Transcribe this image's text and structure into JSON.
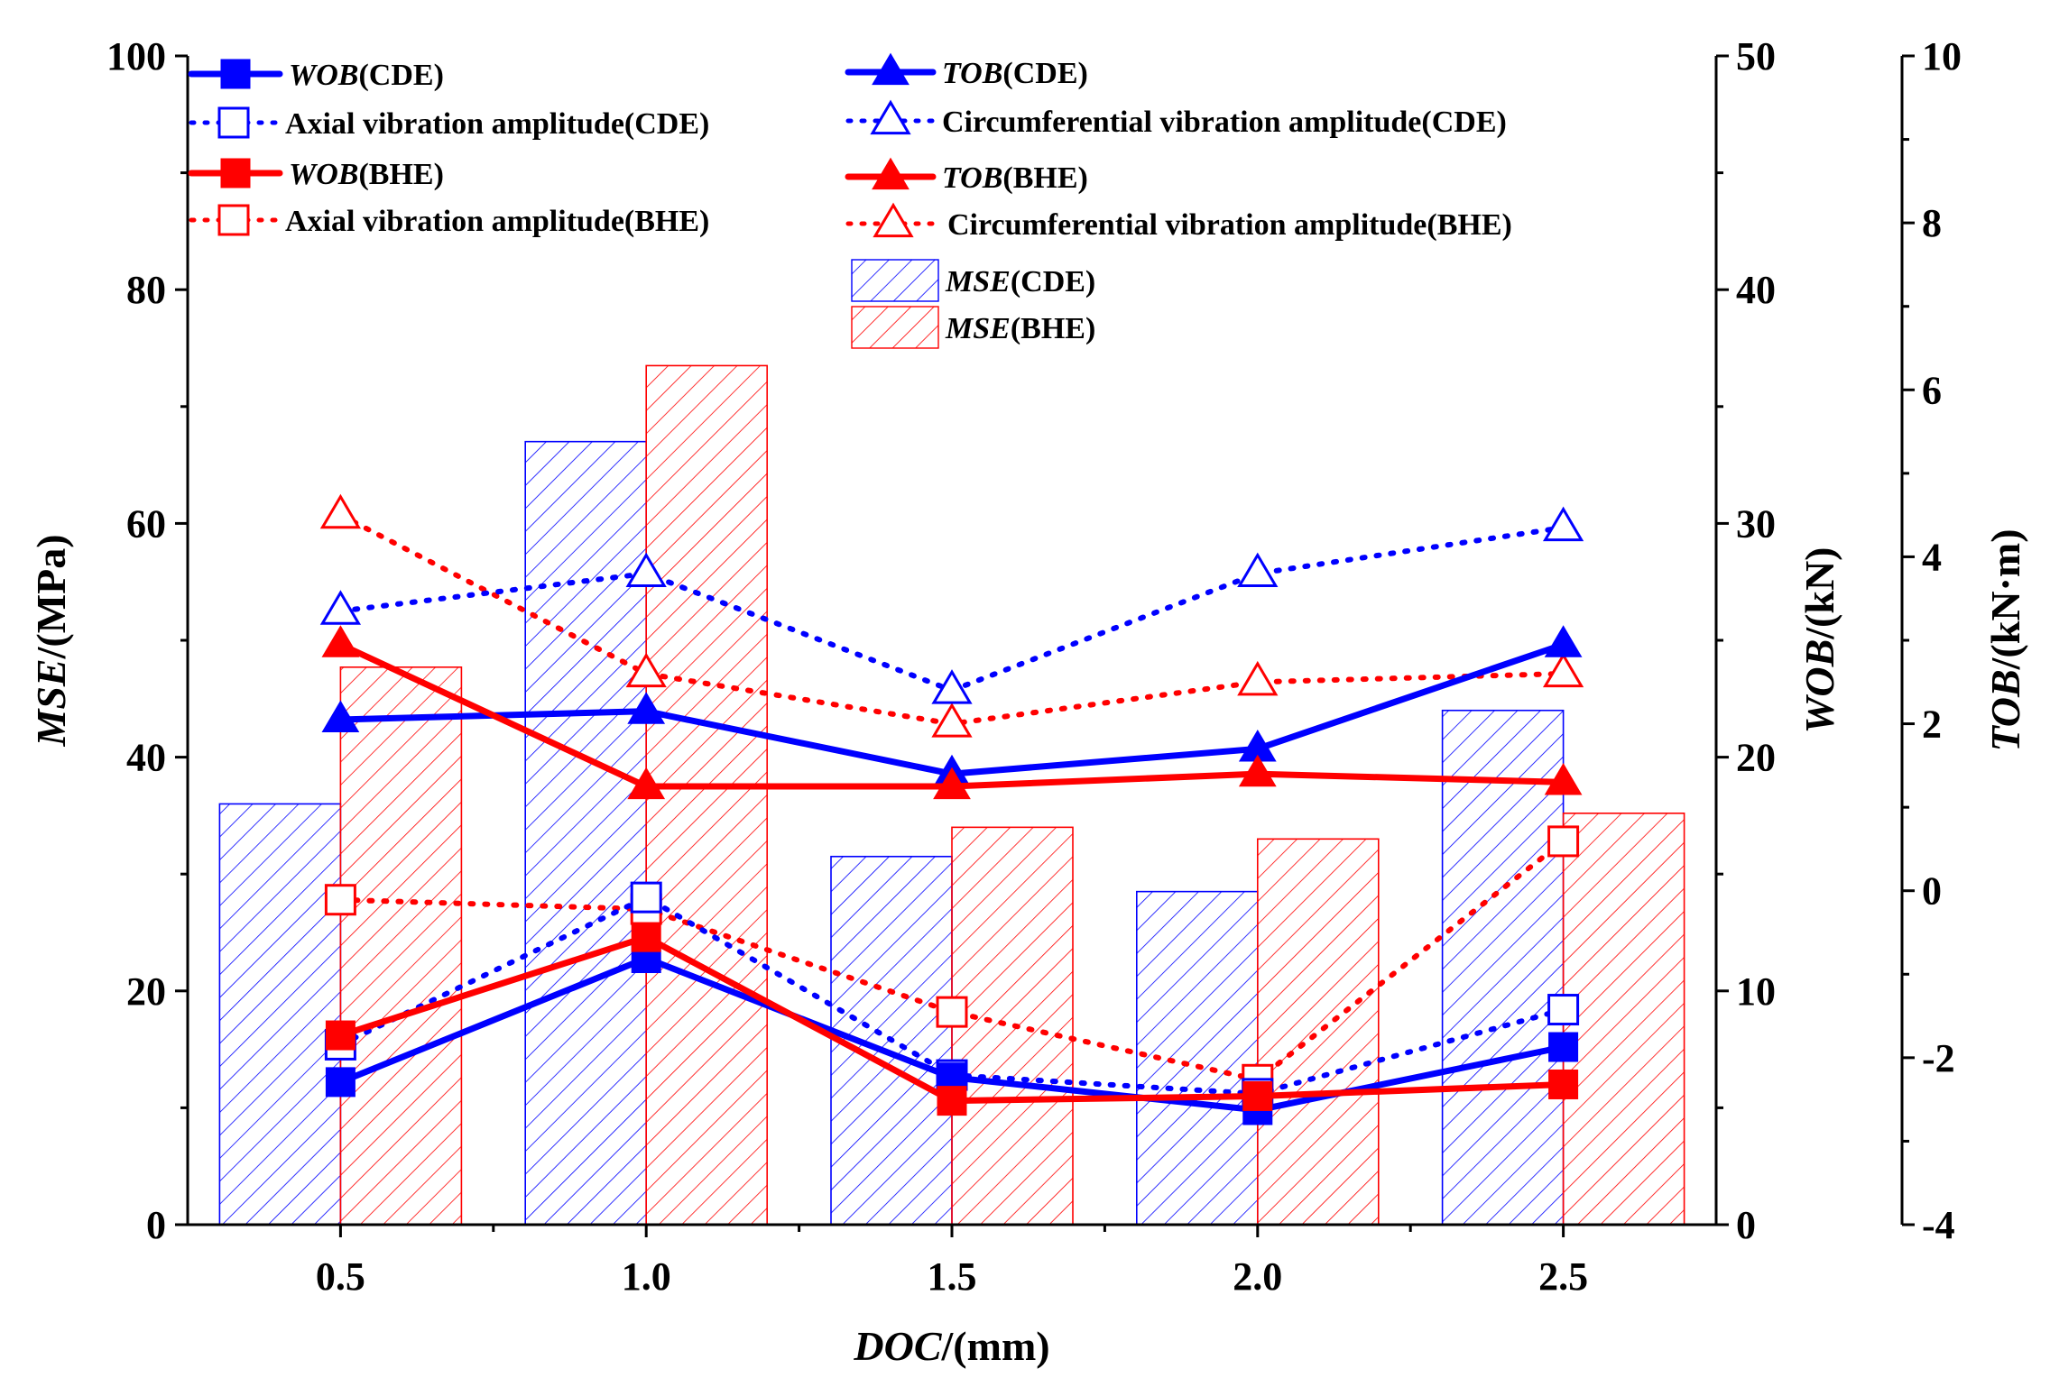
{
  "chart_data": {
    "type": "bar",
    "title": "",
    "x": [
      0.5,
      1.0,
      1.5,
      2.0,
      2.5
    ],
    "xtick_labels": [
      "0.5",
      "1.0",
      "1.5",
      "2.0",
      "2.5"
    ],
    "xlabel": {
      "italic": "DOC",
      "rest": "/(mm)"
    },
    "xlim": [
      0.25,
      2.75
    ],
    "y_axes": {
      "mse": {
        "label_italic": "MSE",
        "label_rest": "/(MPa)",
        "range": [
          0,
          100
        ],
        "ticks": [
          "0",
          "20",
          "40",
          "60",
          "80",
          "100"
        ]
      },
      "wob": {
        "label_italic": "WOB",
        "label_rest": "/(kN)",
        "range": [
          0,
          50
        ],
        "ticks": [
          "0",
          "10",
          "20",
          "30",
          "40",
          "50"
        ]
      },
      "tob": {
        "label_italic": "TOB",
        "label_rest": "/(kN·m)",
        "range": [
          -4,
          10
        ],
        "ticks": [
          "-4",
          "-2",
          "0",
          "2",
          "4",
          "6",
          "8",
          "10"
        ]
      }
    },
    "colors": {
      "cde": "#0000ff",
      "bhe": "#ff0000"
    },
    "bar_series": [
      {
        "key": "mse_cde",
        "name": "MSE(CDE)",
        "legend_italic": "MSE",
        "legend_rest": "(CDE)",
        "color": "#0000ff",
        "axis": "mse",
        "values": [
          36,
          67,
          31.5,
          28.5,
          44
        ]
      },
      {
        "key": "mse_bhe",
        "name": "MSE(BHE)",
        "legend_italic": "MSE",
        "legend_rest": "(BHE)",
        "color": "#ff0000",
        "axis": "mse",
        "values": [
          47.7,
          73.5,
          34,
          33,
          35.2
        ]
      }
    ],
    "line_series": [
      {
        "key": "wob_cde",
        "name": "WOB(CDE)",
        "legend_italic": "WOB",
        "legend_rest": "(CDE)",
        "color": "#0000ff",
        "axis": "wob",
        "style": "solid",
        "marker": "square-filled",
        "values": [
          6.1,
          11.4,
          6.3,
          4.9,
          7.6
        ]
      },
      {
        "key": "axial_cde",
        "name": "Axial vibration amplitude(CDE)",
        "legend_italic": "",
        "legend_rest": "Axial vibration amplitude(CDE)",
        "color": "#0000ff",
        "axis": "wob",
        "style": "dotted",
        "marker": "square-open",
        "values": [
          7.7,
          14.0,
          6.4,
          5.6,
          9.2
        ]
      },
      {
        "key": "wob_bhe",
        "name": "WOB(BHE)",
        "legend_italic": "WOB",
        "legend_rest": "(BHE)",
        "color": "#ff0000",
        "axis": "wob",
        "style": "solid",
        "marker": "square-filled",
        "values": [
          8.1,
          12.3,
          5.3,
          5.5,
          6.0
        ]
      },
      {
        "key": "axial_bhe",
        "name": "Axial vibration amplitude(BHE)",
        "legend_italic": "",
        "legend_rest": "Axial vibration amplitude(BHE)",
        "color": "#ff0000",
        "axis": "wob",
        "style": "dotted",
        "marker": "square-open",
        "values": [
          13.9,
          13.5,
          9.1,
          6.2,
          16.4
        ]
      },
      {
        "key": "tob_cde",
        "name": "TOB(CDE)",
        "legend_italic": "TOB",
        "legend_rest": "(CDE)",
        "color": "#0000ff",
        "axis": "tob",
        "style": "solid",
        "marker": "triangle-filled",
        "values": [
          2.05,
          2.15,
          1.4,
          1.7,
          2.95
        ]
      },
      {
        "key": "circ_cde",
        "name": "Circumferential vibration amplitude(CDE)",
        "legend_italic": "",
        "legend_rest": "Circumferential vibration amplitude(CDE)",
        "color": "#0000ff",
        "axis": "tob",
        "style": "dotted",
        "marker": "triangle-open",
        "values": [
          3.35,
          3.8,
          2.4,
          3.8,
          4.35
        ]
      },
      {
        "key": "tob_bhe",
        "name": "TOB(BHE)",
        "legend_italic": "TOB",
        "legend_rest": "(BHE)",
        "color": "#ff0000",
        "axis": "tob",
        "style": "solid",
        "marker": "triangle-filled",
        "values": [
          2.95,
          1.25,
          1.25,
          1.4,
          1.3
        ]
      },
      {
        "key": "circ_bhe",
        "name": "Circumferential vibration amplitude(BHE)",
        "legend_italic": "",
        "legend_rest": "Circumferential vibration amplitude(BHE)",
        "color": "#ff0000",
        "axis": "tob",
        "style": "dotted",
        "marker": "triangle-open",
        "values": [
          4.5,
          2.6,
          2.0,
          2.5,
          2.6
        ]
      }
    ]
  }
}
